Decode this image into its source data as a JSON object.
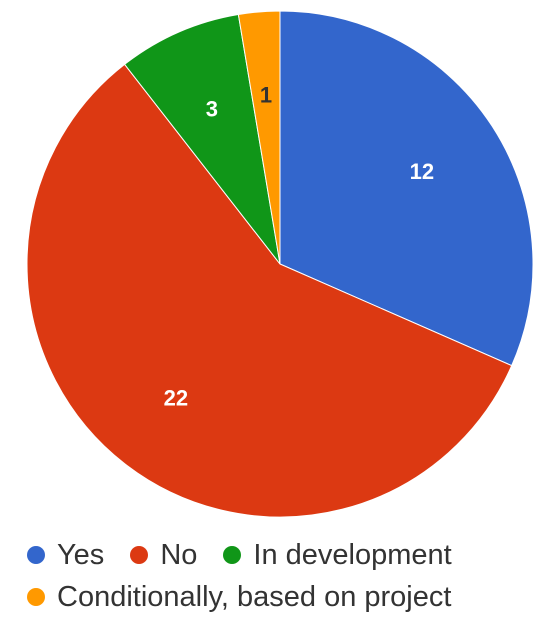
{
  "chart_data": {
    "type": "pie",
    "title": "",
    "start_angle_deg": 0,
    "direction": "clockwise",
    "legend_position": "bottom",
    "slices": [
      {
        "label": "Yes",
        "value": 12,
        "color": "#3366CC",
        "label_color": "#ffffff"
      },
      {
        "label": "No",
        "value": 22,
        "color": "#DC3912",
        "label_color": "#ffffff"
      },
      {
        "label": "In development",
        "value": 3,
        "color": "#109618",
        "label_color": "#ffffff"
      },
      {
        "label": "Conditionally, based on project",
        "value": 1,
        "color": "#FF9900",
        "label_color": "#333333"
      }
    ]
  },
  "legend": {
    "rows": [
      [
        "Yes",
        "No",
        "In development"
      ],
      [
        "Conditionally, based on project"
      ]
    ]
  }
}
